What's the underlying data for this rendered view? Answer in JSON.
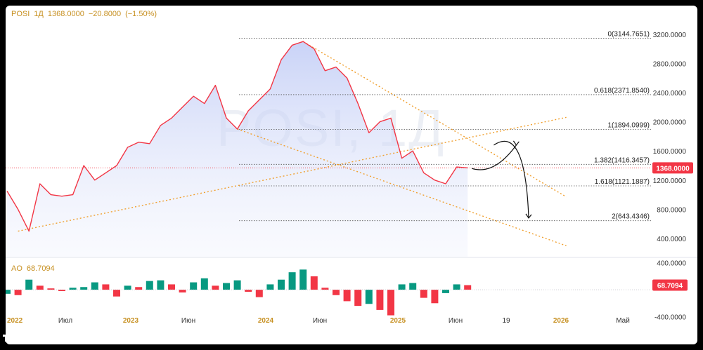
{
  "header": {
    "symbol": "POSI",
    "interval": "1Д",
    "close": "1368.0000",
    "change": "−20.8000",
    "change_pct": "(−1.50%)"
  },
  "watermark": "POSI, 1Д",
  "ao_header": {
    "name": "AO",
    "value": "68.7094"
  },
  "logo_text": "TradingView",
  "colors": {
    "price_line": "#f23645",
    "accent_text": "#c79021",
    "fib_line": "#555555",
    "trend_line": "#f0a030",
    "price_badge": "#f23645",
    "ao_up": "#089981",
    "ao_down": "#f23645"
  },
  "chart_data": [
    {
      "type": "line",
      "title": "",
      "series": [
        {
          "name": "POSI",
          "x": [
            "2022-01",
            "2022-02",
            "2022-03",
            "2022-04",
            "2022-05",
            "2022-06",
            "2022-07",
            "2022-08",
            "2022-09",
            "2022-10",
            "2022-11",
            "2022-12",
            "2023-01",
            "2023-02",
            "2023-03",
            "2023-04",
            "2023-05",
            "2023-06",
            "2023-07",
            "2023-08",
            "2023-09",
            "2023-10",
            "2023-11",
            "2023-12",
            "2024-01",
            "2024-02",
            "2024-03",
            "2024-04",
            "2024-05",
            "2024-06",
            "2024-07",
            "2024-08",
            "2024-09",
            "2024-10",
            "2024-11",
            "2024-12",
            "2025-01",
            "2025-02",
            "2025-03",
            "2025-04",
            "2025-05",
            "2025-06",
            "2025-07"
          ],
          "values": [
            1050,
            800,
            500,
            1150,
            1000,
            980,
            1000,
            1400,
            1200,
            1300,
            1400,
            1650,
            1720,
            1700,
            1950,
            2050,
            2200,
            2350,
            2250,
            2500,
            2050,
            1900,
            2150,
            2300,
            2450,
            2850,
            3050,
            3100,
            3000,
            2700,
            2750,
            2600,
            2250,
            1850,
            2000,
            2050,
            1500,
            1600,
            1300,
            1200,
            1150,
            1380,
            1368
          ]
        }
      ],
      "fib_levels": [
        {
          "ratio": "0",
          "value": 3144.7651,
          "label": "0(3144.7651)"
        },
        {
          "ratio": "0.618",
          "value": 2371.854,
          "label": "0.618(2371.8540)"
        },
        {
          "ratio": "1",
          "value": 1894.0999,
          "label": "1(1894.0999)"
        },
        {
          "ratio": "1.382",
          "value": 1416.3457,
          "label": "1.382(1416.3457)"
        },
        {
          "ratio": "1.618",
          "value": 1121.1887,
          "label": "1.618(1121.1887)"
        },
        {
          "ratio": "2",
          "value": 643.4346,
          "label": "2(643.4346)"
        }
      ],
      "y_ticks": [
        "3200.0000",
        "2800.0000",
        "2400.0000",
        "2000.0000",
        "1600.0000",
        "1200.0000",
        "800.0000",
        "400.0000"
      ],
      "y_tick_values": [
        3200,
        2800,
        2400,
        2000,
        1600,
        1200,
        800,
        400
      ],
      "ylim": [
        150,
        3400
      ],
      "last_price": "1368.0000",
      "last_price_value": 1368,
      "x_ticks": [
        "2022",
        "Июл",
        "2023",
        "Июн",
        "2024",
        "Июн",
        "2025",
        "Июн",
        "19",
        "2026",
        "Май"
      ],
      "trend_lines": [
        {
          "from": [
            "2022-02",
            500
          ],
          "to": [
            "2026-04",
            2060
          ]
        },
        {
          "from": [
            "2023-10",
            1900
          ],
          "to": [
            "2026-04",
            300
          ]
        },
        {
          "from": [
            "2024-04",
            3100
          ],
          "to": [
            "2026-04",
            970
          ]
        }
      ],
      "projection": [
        {
          "from": [
            "2025-07",
            1360
          ],
          "to": [
            "2025-09",
            1680
          ]
        },
        {
          "from": [
            "2025-09",
            1680
          ],
          "to": [
            "2025-10",
            680
          ]
        }
      ]
    },
    {
      "type": "bar",
      "title": "AO",
      "series": [
        {
          "name": "AO",
          "x": [
            "2022-01",
            "2022-02",
            "2022-03",
            "2022-04",
            "2022-05",
            "2022-06",
            "2022-07",
            "2022-08",
            "2022-09",
            "2022-10",
            "2022-11",
            "2022-12",
            "2023-01",
            "2023-02",
            "2023-03",
            "2023-04",
            "2023-05",
            "2023-06",
            "2023-07",
            "2023-08",
            "2023-09",
            "2023-10",
            "2023-11",
            "2023-12",
            "2024-01",
            "2024-02",
            "2024-03",
            "2024-04",
            "2024-05",
            "2024-06",
            "2024-07",
            "2024-08",
            "2024-09",
            "2024-10",
            "2024-11",
            "2024-12",
            "2025-01",
            "2025-02",
            "2025-03",
            "2025-04",
            "2025-05",
            "2025-06",
            "2025-07"
          ],
          "values": [
            -60,
            -80,
            150,
            60,
            20,
            -20,
            30,
            40,
            110,
            80,
            -100,
            60,
            40,
            130,
            140,
            80,
            -40,
            110,
            170,
            60,
            100,
            140,
            -30,
            -110,
            80,
            150,
            260,
            300,
            200,
            30,
            -80,
            -170,
            -240,
            -210,
            -300,
            -380,
            80,
            100,
            -120,
            -200,
            -50,
            80,
            68.7094
          ]
        }
      ],
      "y_ticks": [
        "400.0000",
        "-400.0000"
      ],
      "y_tick_values": [
        400,
        -400
      ],
      "ylim": [
        -520,
        470
      ],
      "last_value": "68.7094"
    }
  ]
}
